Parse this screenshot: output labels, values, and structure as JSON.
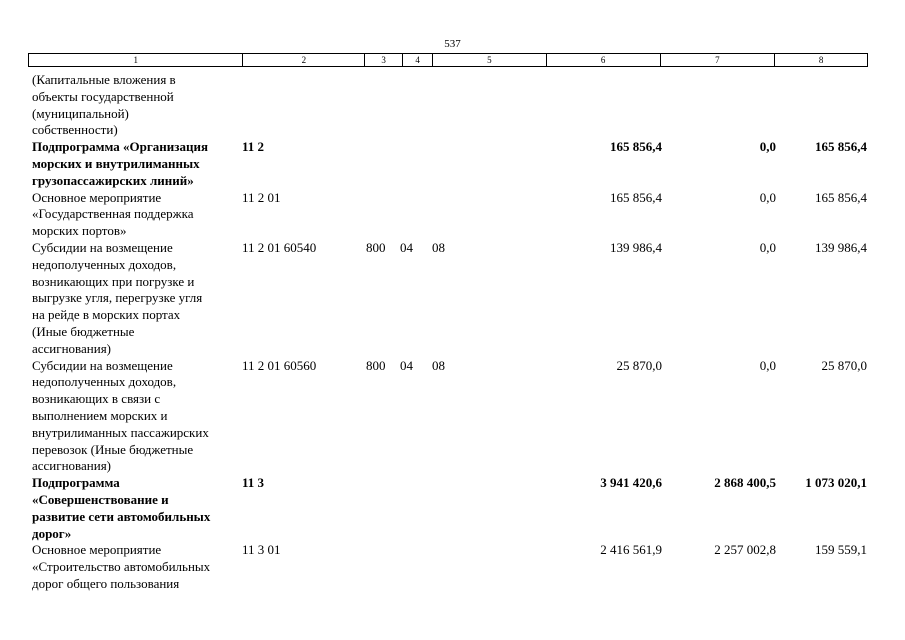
{
  "page_number": "537",
  "header_columns": [
    "1",
    "2",
    "3",
    "4",
    "5",
    "6",
    "7",
    "8"
  ],
  "rows": [
    {
      "name": [
        "(Капитальные вложения в",
        "объекты государственной",
        "(муниципальной)",
        "собственности)"
      ],
      "code": "",
      "group": "",
      "section": "",
      "subsection": "",
      "a1": "",
      "a2": "",
      "a3": "",
      "bold": false
    },
    {
      "name": [
        "Подпрограмма «Организация",
        "морских и внутрилиманных",
        "грузопассажирских линий»"
      ],
      "code": "11 2",
      "group": "",
      "section": "",
      "subsection": "",
      "a1": "165 856,4",
      "a2": "0,0",
      "a3": "165 856,4",
      "bold": true
    },
    {
      "name": [
        "Основное мероприятие",
        "«Государственная поддержка",
        "морских портов»"
      ],
      "code": "11 2 01",
      "group": "",
      "section": "",
      "subsection": "",
      "a1": "165 856,4",
      "a2": "0,0",
      "a3": "165 856,4",
      "bold": false
    },
    {
      "name": [
        "Субсидии на возмещение",
        "недополученных доходов,",
        "возникающих при погрузке и",
        "выгрузке угля, перегрузке угля",
        "на рейде в морских портах",
        "(Иные бюджетные",
        "ассигнования)"
      ],
      "code": "11 2 01 60540",
      "group": "800",
      "section": "04",
      "subsection": "08",
      "a1": "139 986,4",
      "a2": "0,0",
      "a3": "139 986,4",
      "bold": false
    },
    {
      "name": [
        "Субсидии на возмещение",
        "недополученных доходов,",
        "возникающих в связи с",
        "выполнением морских и",
        "внутрилиманных пассажирских",
        "перевозок (Иные бюджетные",
        "ассигнования)"
      ],
      "code": "11 2 01 60560",
      "group": "800",
      "section": "04",
      "subsection": "08",
      "a1": "25 870,0",
      "a2": "0,0",
      "a3": "25 870,0",
      "bold": false
    },
    {
      "name": [
        "Подпрограмма",
        "«Совершенствование и",
        "развитие сети автомобильных",
        "дорог»"
      ],
      "code": "11 3",
      "group": "",
      "section": "",
      "subsection": "",
      "a1": "3 941 420,6",
      "a2": "2 868 400,5",
      "a3": "1 073 020,1",
      "bold": true
    },
    {
      "name": [
        "Основное мероприятие",
        "«Строительство автомобильных",
        "дорог общего пользования"
      ],
      "code": "11 3 01",
      "group": "",
      "section": "",
      "subsection": "",
      "a1": "2 416 561,9",
      "a2": "2 257 002,8",
      "a3": "159 559,1",
      "bold": false
    }
  ]
}
